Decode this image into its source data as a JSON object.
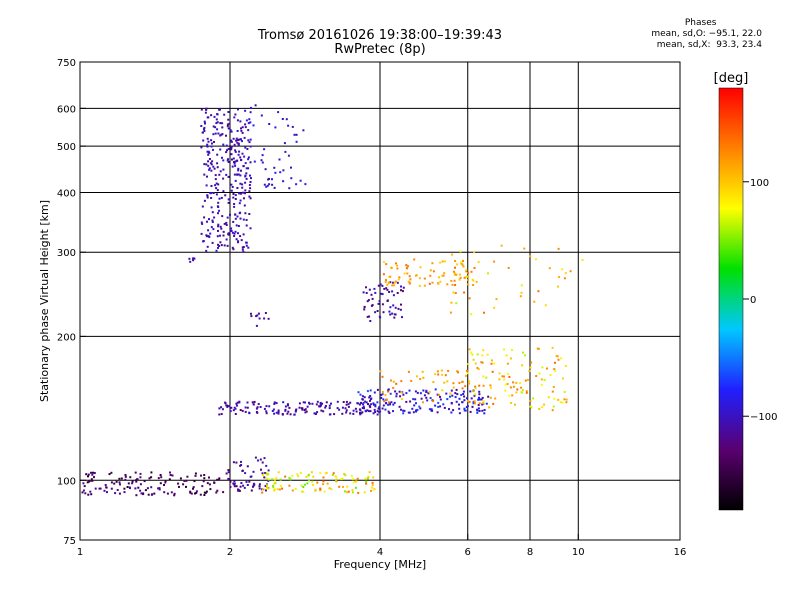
{
  "header": {
    "title": "Tromsø 20161026 19:38:00–19:39:43",
    "subtitle": "RwPretec (8p)"
  },
  "phase_stats": {
    "heading": "Phases",
    "o_line": "mean, sd,O: −95.1, 22.0",
    "x_line": "mean, sd,X:  93.3, 23.4"
  },
  "colorbar": {
    "unit_label": "[deg]",
    "ticks": [
      {
        "label": "100",
        "value": 100
      },
      {
        "label": "0",
        "value": 0
      },
      {
        "label": "−100",
        "value": -100
      }
    ],
    "range": [
      -180,
      180
    ],
    "colors": [
      "#000000",
      "#5a0070",
      "#2020ff",
      "#00c8ff",
      "#00e000",
      "#ffff00",
      "#ff8000",
      "#ff0000"
    ]
  },
  "chart_data": {
    "type": "scatter",
    "title": "Tromsø 20161026 19:38:00–19:39:43",
    "subtitle": "RwPretec (8p)",
    "xlabel": "Frequency [MHz]",
    "ylabel": "Stationary phase Virtual Height [km]",
    "x_scale": "log",
    "y_scale": "log",
    "xlim": [
      1,
      16
    ],
    "ylim": [
      75,
      750
    ],
    "grid": true,
    "x_ticks": [
      {
        "label": "1",
        "value": 1
      },
      {
        "label": "2",
        "value": 2
      },
      {
        "label": "4",
        "value": 4
      },
      {
        "label": "6",
        "value": 6
      },
      {
        "label": "8",
        "value": 8
      },
      {
        "label": "10",
        "value": 10
      },
      {
        "label": "16",
        "value": 16
      }
    ],
    "x_gridlines": [
      2,
      4,
      6,
      8,
      10
    ],
    "y_ticks": [
      {
        "label": "75",
        "value": 75
      },
      {
        "label": "100",
        "value": 100
      },
      {
        "label": "200",
        "value": 200
      },
      {
        "label": "300",
        "value": 300
      },
      {
        "label": "400",
        "value": 400
      },
      {
        "label": "500",
        "value": 500
      },
      {
        "label": "600",
        "value": 600
      },
      {
        "label": "750",
        "value": 750
      }
    ],
    "y_gridlines": [
      100,
      200,
      300,
      400,
      500,
      600
    ],
    "color_scale": "phase [deg]",
    "clusters": [
      {
        "f_min": 1.0,
        "f_max": 1.95,
        "h_min": 93,
        "h_max": 104,
        "phase_min": -160,
        "phase_max": -110,
        "count": 140
      },
      {
        "f_min": 1.95,
        "f_max": 2.4,
        "h_min": 95,
        "h_max": 112,
        "phase_min": -140,
        "phase_max": -90,
        "count": 60
      },
      {
        "f_min": 2.3,
        "f_max": 3.9,
        "h_min": 94,
        "h_max": 104,
        "phase_min": 40,
        "phase_max": 140,
        "count": 110
      },
      {
        "f_min": 1.9,
        "f_max": 4.0,
        "h_min": 137,
        "h_max": 146,
        "phase_min": -130,
        "phase_max": -90,
        "count": 160
      },
      {
        "f_min": 3.6,
        "f_max": 6.6,
        "h_min": 138,
        "h_max": 155,
        "phase_min": -120,
        "phase_max": -60,
        "count": 170
      },
      {
        "f_min": 4.0,
        "f_max": 6.2,
        "h_min": 145,
        "h_max": 170,
        "phase_min": 90,
        "phase_max": 140,
        "count": 50
      },
      {
        "f_min": 6.0,
        "f_max": 9.5,
        "h_min": 140,
        "h_max": 190,
        "phase_min": 60,
        "phase_max": 140,
        "count": 120
      },
      {
        "f_min": 3.7,
        "f_max": 4.5,
        "h_min": 215,
        "h_max": 260,
        "phase_min": -130,
        "phase_max": -90,
        "count": 60
      },
      {
        "f_min": 4.0,
        "f_max": 6.2,
        "h_min": 255,
        "h_max": 290,
        "phase_min": 90,
        "phase_max": 140,
        "count": 90
      },
      {
        "f_min": 5.5,
        "f_max": 10.5,
        "h_min": 220,
        "h_max": 310,
        "phase_min": 60,
        "phase_max": 140,
        "count": 40
      },
      {
        "f_min": 1.75,
        "f_max": 2.2,
        "h_min": 300,
        "h_max": 600,
        "phase_min": -120,
        "phase_max": -90,
        "count": 320
      },
      {
        "f_min": 2.1,
        "f_max": 2.85,
        "h_min": 400,
        "h_max": 610,
        "phase_min": -110,
        "phase_max": -80,
        "count": 60
      },
      {
        "f_min": 2.2,
        "f_max": 2.4,
        "h_min": 210,
        "h_max": 225,
        "phase_min": -120,
        "phase_max": -100,
        "count": 10
      },
      {
        "f_min": 1.6,
        "f_max": 1.7,
        "h_min": 285,
        "h_max": 295,
        "phase_min": -120,
        "phase_max": -100,
        "count": 6
      }
    ]
  }
}
